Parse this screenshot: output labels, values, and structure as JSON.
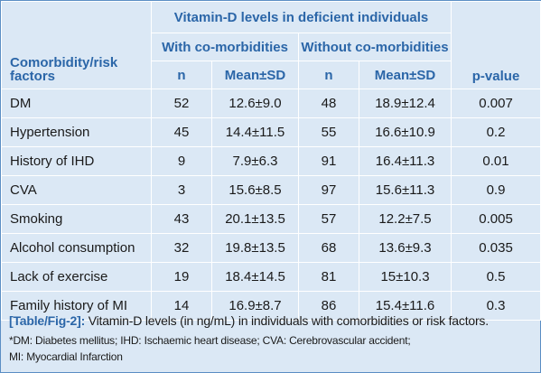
{
  "table": {
    "group_header": "Vitamin-D levels in deficient individuals",
    "row_header": "Comorbidity/risk factors",
    "with_header": "With co-morbidities",
    "without_header": "Without co-morbidities",
    "n_label": "n",
    "mean_label": "Mean±SD",
    "pvalue_label": "p-value",
    "rows": [
      {
        "factor": "DM",
        "n_with": "52",
        "mean_with": "12.6±9.0",
        "n_without": "48",
        "mean_without": "18.9±12.4",
        "p": "0.007"
      },
      {
        "factor": "Hypertension",
        "n_with": "45",
        "mean_with": "14.4±11.5",
        "n_without": "55",
        "mean_without": "16.6±10.9",
        "p": "0.2"
      },
      {
        "factor": "History of IHD",
        "n_with": "9",
        "mean_with": "7.9±6.3",
        "n_without": "91",
        "mean_without": "16.4±11.3",
        "p": "0.01"
      },
      {
        "factor": "CVA",
        "n_with": "3",
        "mean_with": "15.6±8.5",
        "n_without": "97",
        "mean_without": "15.6±11.3",
        "p": "0.9"
      },
      {
        "factor": "Smoking",
        "n_with": "43",
        "mean_with": "20.1±13.5",
        "n_without": "57",
        "mean_without": "12.2±7.5",
        "p": "0.005"
      },
      {
        "factor": "Alcohol consumption",
        "n_with": "32",
        "mean_with": "19.8±13.5",
        "n_without": "68",
        "mean_without": "13.6±9.3",
        "p": "0.035"
      },
      {
        "factor": "Lack of exercise",
        "n_with": "19",
        "mean_with": "18.4±14.5",
        "n_without": "81",
        "mean_without": "15±10.3",
        "p": "0.5"
      },
      {
        "factor": "Family history of MI",
        "n_with": "14",
        "mean_with": "16.9±8.7",
        "n_without": "86",
        "mean_without": "15.4±11.6",
        "p": "0.3"
      }
    ]
  },
  "caption": {
    "tag": "[Table/Fig-2]:",
    "text": " Vitamin-D levels (in ng/mL) in individuals with comorbidities or risk factors.",
    "note_line1": "*DM: Diabetes mellitus; IHD: Ischaemic heart disease; CVA: Cerebrovascular accident;",
    "note_line2": "MI: Myocardial Infarction"
  },
  "colors": {
    "background": "#dbe8f5",
    "header_text": "#2b66a8",
    "border": "#5b8ec4"
  }
}
